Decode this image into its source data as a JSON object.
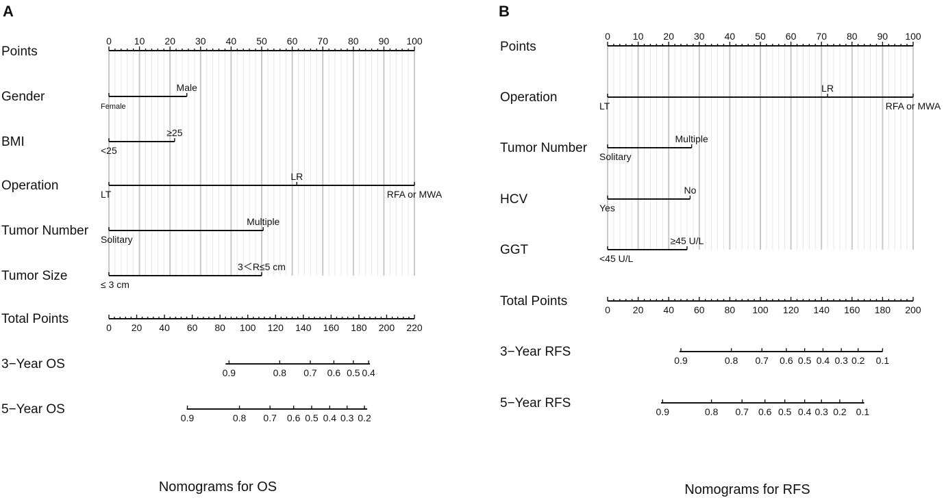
{
  "chart_data": [
    {
      "type": "nomogram",
      "panel_letter": "A",
      "caption": "Nomograms for OS",
      "points_label": "Points",
      "points_ticks": [
        0,
        10,
        20,
        30,
        40,
        50,
        60,
        70,
        80,
        90,
        100
      ],
      "variables": [
        {
          "name": "Gender",
          "levels": [
            {
              "label": "Female",
              "points": 0,
              "pos": "below",
              "small": true
            },
            {
              "label": "Male",
              "points": 25.5,
              "pos": "above"
            }
          ]
        },
        {
          "name": "BMI",
          "levels": [
            {
              "label": "<25",
              "points": 0,
              "pos": "below"
            },
            {
              "label": "≥25",
              "points": 21.5,
              "pos": "above"
            }
          ]
        },
        {
          "name": "Operation",
          "levels": [
            {
              "label": "LT",
              "points": 0,
              "pos": "below"
            },
            {
              "label": "LR",
              "points": 61.5,
              "pos": "above"
            },
            {
              "label": "RFA or MWA",
              "points": 100,
              "pos": "below"
            }
          ]
        },
        {
          "name": "Tumor Number",
          "levels": [
            {
              "label": "Solitary",
              "points": 0,
              "pos": "below"
            },
            {
              "label": "Multiple",
              "points": 50.5,
              "pos": "above"
            }
          ]
        },
        {
          "name": "Tumor Size",
          "levels": [
            {
              "label": "≤ 3 cm",
              "points": 0,
              "pos": "below"
            },
            {
              "label": "3＜R≤5 cm",
              "points": 50,
              "pos": "above"
            }
          ]
        }
      ],
      "total_points": {
        "label": "Total Points",
        "ticks": [
          0,
          20,
          40,
          60,
          80,
          100,
          120,
          140,
          160,
          180,
          200,
          220
        ],
        "range": [
          0,
          220
        ]
      },
      "outcomes": [
        {
          "label": "3−Year OS",
          "line_range": [
            84,
            188
          ],
          "ticks": [
            {
              "label": "0.9",
              "total": 86.5
            },
            {
              "label": "0.8",
              "total": 123
            },
            {
              "label": "0.7",
              "total": 145
            },
            {
              "label": "0.6",
              "total": 162
            },
            {
              "label": "0.5",
              "total": 176
            },
            {
              "label": "0.4",
              "total": 187
            }
          ]
        },
        {
          "label": "5−Year OS",
          "line_range": [
            56,
            186
          ],
          "ticks": [
            {
              "label": "0.9",
              "total": 56.5
            },
            {
              "label": "0.8",
              "total": 94
            },
            {
              "label": "0.7",
              "total": 116
            },
            {
              "label": "0.6",
              "total": 133
            },
            {
              "label": "0.5",
              "total": 146
            },
            {
              "label": "0.4",
              "total": 159
            },
            {
              "label": "0.3",
              "total": 171.5
            },
            {
              "label": "0.2",
              "total": 184
            }
          ]
        }
      ]
    },
    {
      "type": "nomogram",
      "panel_letter": "B",
      "caption": "Nomograms for RFS",
      "points_label": "Points",
      "points_ticks": [
        0,
        10,
        20,
        30,
        40,
        50,
        60,
        70,
        80,
        90,
        100
      ],
      "variables": [
        {
          "name": "Operation",
          "levels": [
            {
              "label": "LT",
              "points": 0,
              "pos": "below"
            },
            {
              "label": "LR",
              "points": 72,
              "pos": "above"
            },
            {
              "label": "RFA or MWA",
              "points": 100,
              "pos": "below"
            }
          ]
        },
        {
          "name": "Tumor Number",
          "levels": [
            {
              "label": "Solitary",
              "points": 0,
              "pos": "below"
            },
            {
              "label": "Multiple",
              "points": 27.5,
              "pos": "above"
            }
          ]
        },
        {
          "name": "HCV",
          "levels": [
            {
              "label": "Yes",
              "points": 0,
              "pos": "below"
            },
            {
              "label": "No",
              "points": 27,
              "pos": "above"
            }
          ]
        },
        {
          "name": "GGT",
          "levels": [
            {
              "label": "<45 U/L",
              "points": 0,
              "pos": "below"
            },
            {
              "label": "≥45 U/L",
              "points": 26,
              "pos": "above"
            }
          ]
        }
      ],
      "total_points": {
        "label": "Total Points",
        "ticks": [
          0,
          20,
          40,
          60,
          80,
          100,
          120,
          140,
          160,
          180,
          200
        ],
        "range": [
          0,
          200
        ]
      },
      "outcomes": [
        {
          "label": "3−Year RFS",
          "line_range": [
            47,
            180
          ],
          "ticks": [
            {
              "label": "0.9",
              "total": 48
            },
            {
              "label": "0.8",
              "total": 81
            },
            {
              "label": "0.7",
              "total": 101
            },
            {
              "label": "0.6",
              "total": 117
            },
            {
              "label": "0.5",
              "total": 129
            },
            {
              "label": "0.4",
              "total": 141
            },
            {
              "label": "0.3",
              "total": 153
            },
            {
              "label": "0.2",
              "total": 164
            },
            {
              "label": "0.1",
              "total": 180
            }
          ]
        },
        {
          "label": "5−Year RFS",
          "line_range": [
            35,
            168
          ],
          "ticks": [
            {
              "label": "0.9",
              "total": 36
            },
            {
              "label": "0.8",
              "total": 68
            },
            {
              "label": "0.7",
              "total": 88
            },
            {
              "label": "0.6",
              "total": 103
            },
            {
              "label": "0.5",
              "total": 116
            },
            {
              "label": "0.4",
              "total": 129
            },
            {
              "label": "0.3",
              "total": 140
            },
            {
              "label": "0.2",
              "total": 152
            },
            {
              "label": "0.1",
              "total": 167
            }
          ]
        }
      ]
    }
  ]
}
